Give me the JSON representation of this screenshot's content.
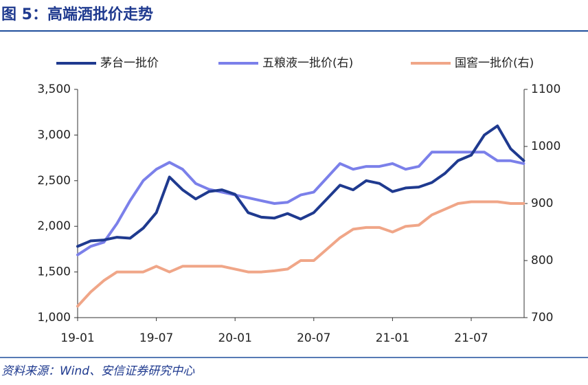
{
  "title": "图 5：高端酒批价走势",
  "source": "资料来源：Wind、安信证券研究中心",
  "chart_data": {
    "type": "line",
    "categories": [
      "19-01",
      null,
      null,
      null,
      null,
      null,
      "19-07",
      null,
      null,
      null,
      null,
      null,
      "20-01",
      null,
      null,
      null,
      null,
      null,
      "20-07",
      null,
      null,
      null,
      null,
      null,
      "21-01",
      null,
      null,
      null,
      null,
      null,
      "21-07",
      null,
      null,
      null,
      null
    ],
    "series": [
      {
        "name": "茅台一批价",
        "color": "#1f3a8f",
        "axis": "y",
        "values": [
          1780,
          1840,
          1850,
          1880,
          1870,
          1980,
          2150,
          2540,
          2400,
          2300,
          2380,
          2400,
          2350,
          2150,
          2100,
          2090,
          2140,
          2080,
          2150,
          2300,
          2450,
          2400,
          2500,
          2470,
          2380,
          2420,
          2430,
          2480,
          2580,
          2720,
          2780,
          3000,
          3100,
          2850,
          2720
        ]
      },
      {
        "name": "五粮液一批价(右)",
        "color": "#7b80ea",
        "axis": "y2",
        "values": [
          810,
          825,
          832,
          865,
          905,
          940,
          960,
          972,
          960,
          935,
          925,
          920,
          915,
          910,
          905,
          900,
          902,
          915,
          920,
          945,
          970,
          960,
          965,
          965,
          970,
          960,
          965,
          990,
          990,
          990,
          990,
          990,
          975,
          975,
          970
        ]
      },
      {
        "name": "国窖一批价(右)",
        "color": "#f0a688",
        "axis": "y2",
        "values": [
          720,
          745,
          765,
          780,
          780,
          780,
          790,
          780,
          790,
          790,
          790,
          790,
          785,
          780,
          780,
          782,
          785,
          800,
          800,
          820,
          840,
          855,
          858,
          858,
          850,
          860,
          862,
          880,
          890,
          900,
          903,
          903,
          903,
          900,
          900
        ]
      }
    ],
    "ylim": [
      1000,
      3500
    ],
    "yticks": [
      {
        "value": 1000,
        "label": "1,000"
      },
      {
        "value": 1500,
        "label": "1,500"
      },
      {
        "value": 2000,
        "label": "2,000"
      },
      {
        "value": 2500,
        "label": "2,500"
      },
      {
        "value": 3000,
        "label": "3,000"
      },
      {
        "value": 3500,
        "label": "3,500"
      }
    ],
    "y2lim": [
      700,
      1100
    ],
    "y2ticks": [
      700,
      800,
      900,
      1000,
      1100
    ],
    "grid": false,
    "legend": "top"
  }
}
